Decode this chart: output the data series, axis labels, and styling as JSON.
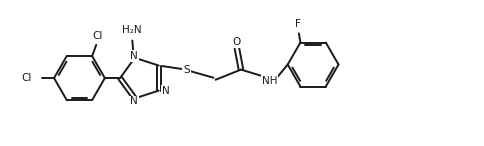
{
  "background_color": "#ffffff",
  "line_color": "#1a1a1a",
  "line_width": 1.4,
  "font_size": 7.5,
  "fig_width": 4.84,
  "fig_height": 1.46,
  "dpi": 100,
  "xlim": [
    0,
    9.5
  ],
  "ylim": [
    0,
    2.8
  ]
}
